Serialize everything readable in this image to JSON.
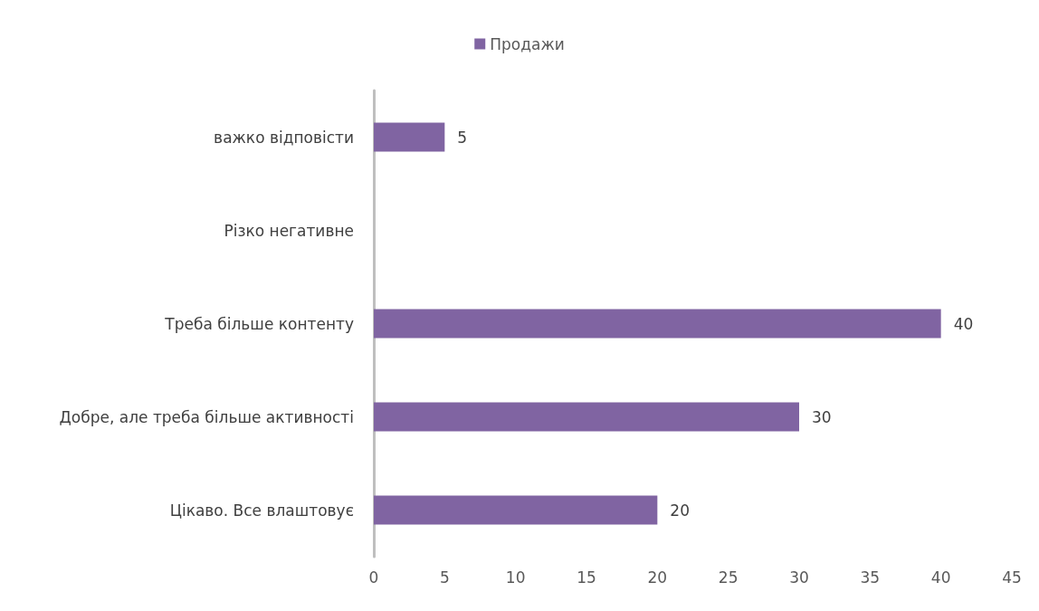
{
  "chart_data": {
    "type": "bar",
    "orientation": "horizontal",
    "categories": [
      "важко відповісти",
      "Різко негативне",
      "Треба більше контенту",
      "Добре, але треба більше активності",
      "Цікаво. Все влаштовує"
    ],
    "series": [
      {
        "name": "Продажи",
        "color": "#8064a2",
        "values": [
          5,
          null,
          40,
          30,
          20
        ]
      }
    ],
    "xlim": [
      0,
      45
    ],
    "xticks": [
      0,
      5,
      10,
      15,
      20,
      25,
      30,
      35,
      40,
      45
    ],
    "grid": false,
    "legend": "top",
    "data_labels": true
  }
}
